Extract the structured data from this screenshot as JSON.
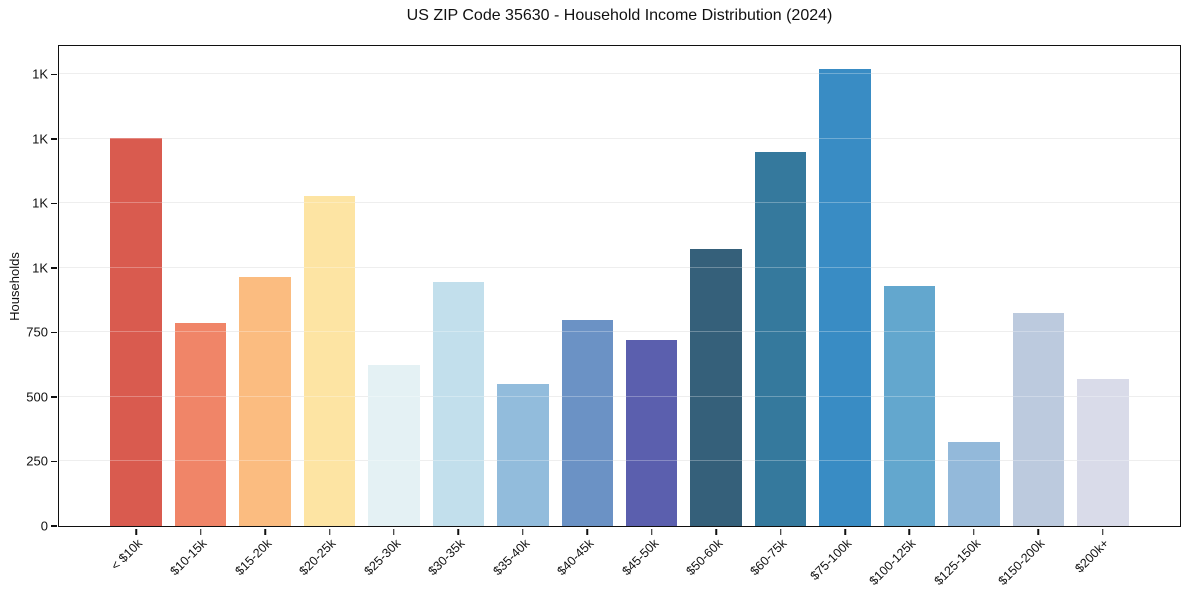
{
  "chart_data": {
    "type": "bar",
    "title": "US ZIP Code 35630 - Household Income Distribution (2024)",
    "xlabel": "",
    "ylabel": "Households",
    "categories": [
      "< $10k",
      "$10-15k",
      "$15-20k",
      "$20-25k",
      "$25-30k",
      "$30-35k",
      "$35-40k",
      "$40-45k",
      "$45-50k",
      "$50-60k",
      "$60-75k",
      "$75-100k",
      "$100-125k",
      "$125-150k",
      "$150-200k",
      "$200k+"
    ],
    "values": [
      1505,
      785,
      965,
      1280,
      625,
      945,
      550,
      800,
      720,
      1075,
      1450,
      1770,
      930,
      325,
      825,
      570
    ],
    "bar_colors": [
      "#d95b4f",
      "#f08568",
      "#fbbc80",
      "#fde4a3",
      "#e4f1f4",
      "#c2dfec",
      "#92bcdc",
      "#6b92c5",
      "#5b5fae",
      "#35607a",
      "#35799d",
      "#398cc4",
      "#63a7ce",
      "#93b9da",
      "#bccade",
      "#d9dbe9"
    ],
    "ylim": [
      0,
      1860
    ],
    "yticks": [
      {
        "value": 0,
        "label": "0"
      },
      {
        "value": 250,
        "label": "250"
      },
      {
        "value": 500,
        "label": "500"
      },
      {
        "value": 750,
        "label": "750"
      },
      {
        "value": 1000,
        "label": "1K"
      },
      {
        "value": 1250,
        "label": "1K"
      },
      {
        "value": 1500,
        "label": "1K"
      },
      {
        "value": 1750,
        "label": "1K"
      }
    ],
    "grid": "horizontal",
    "legend": "none",
    "background": "#ffffff",
    "spine_color": "#101010"
  }
}
